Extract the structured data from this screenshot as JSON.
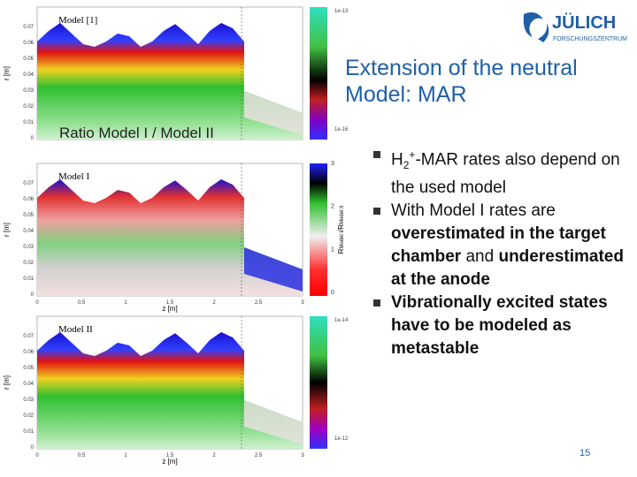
{
  "header": {
    "title": "Extension of the neutral Model: MAR",
    "logo": "JÜLICH",
    "logo_sub": "FORSCHUNGSZENTRUM"
  },
  "figure": {
    "caption": "Ratio Model I / Model II",
    "y_axis_label": "r [m]",
    "x_axis_label": "z [m]",
    "y_ticks": [
      "0.07",
      "0.06",
      "0.05",
      "0.04",
      "0.03",
      "0.02",
      "0.01",
      "0"
    ],
    "x_ticks": [
      "0",
      "0.5",
      "1",
      "1.5",
      "2",
      "2.5",
      "3"
    ],
    "panels": [
      {
        "label": "Model [1]",
        "colorbar_top": "1e-13",
        "colorbar_bottom": "1e-16"
      },
      {
        "label": "Model I",
        "colorbar_ticks": [
          "3",
          "2",
          "1",
          "0"
        ],
        "colorbar_label": [
          "R",
          "Model I",
          "/R",
          "Model II"
        ]
      },
      {
        "label": "Model II",
        "colorbar_top": "1e-14",
        "colorbar_bottom": "1e-12"
      }
    ]
  },
  "bullets": [
    [
      {
        "text": "H"
      },
      {
        "text": "2",
        "sub": true
      },
      {
        "text": "+",
        "sup": true
      },
      {
        "text": "-MAR rates also depend on the used model"
      }
    ],
    [
      {
        "text": "With Model I rates are "
      },
      {
        "text": "overestimated in the target chamber",
        "bold": true
      },
      {
        "text": " and "
      },
      {
        "text": "underestimated at the anode",
        "bold": true
      }
    ],
    [
      {
        "text": "Vibrationally excited states have to be modeled as metastable",
        "bold": true
      }
    ]
  ],
  "page_number": "15"
}
